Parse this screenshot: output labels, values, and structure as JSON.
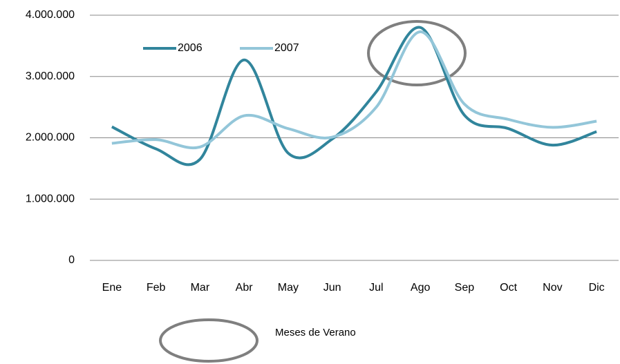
{
  "chart_data": {
    "type": "line",
    "categories": [
      "Ene",
      "Feb",
      "Mar",
      "Abr",
      "May",
      "Jun",
      "Jul",
      "Ago",
      "Sep",
      "Oct",
      "Nov",
      "Dic"
    ],
    "series": [
      {
        "name": "2006",
        "color": "#31859c",
        "values": [
          2180000,
          1820000,
          1650000,
          3270000,
          1750000,
          1980000,
          2750000,
          3800000,
          2370000,
          2150000,
          1880000,
          2100000
        ]
      },
      {
        "name": "2007",
        "color": "#93c6d9",
        "values": [
          1910000,
          1970000,
          1850000,
          2360000,
          2150000,
          2010000,
          2500000,
          3730000,
          2550000,
          2300000,
          2170000,
          2270000
        ]
      }
    ],
    "ylim": [
      0,
      4000000
    ],
    "yticks": [
      0,
      {
        "value": 1000000,
        "label": "1.000.000"
      },
      {
        "value": 2000000,
        "label": "2.000.000"
      },
      {
        "value": 3000000,
        "label": "3.000.000"
      },
      {
        "value": 4000000,
        "label": "4.000.000"
      }
    ],
    "grid": true,
    "smooth": true,
    "legend": "top-left",
    "annotation": "Meses de Verano"
  }
}
